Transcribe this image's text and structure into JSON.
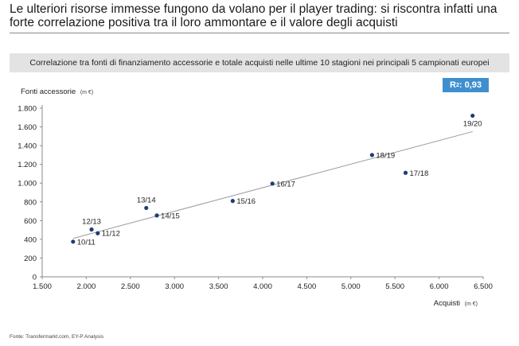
{
  "header": {
    "title": "Le ulteriori risorse immesse fungono da volano per il player trading: si riscontra infatti una forte correlazione positiva tra il loro ammontare e il valore degli acquisti",
    "subtitle": "Correlazione tra fonti di finanziamento accessorie e totale acquisti nelle ultime 10 stagioni nei principali 5 campionati europei"
  },
  "badge": {
    "label": "R",
    "sup": "2",
    "value": ": 0,93"
  },
  "footer": {
    "source": "Fonte: Transfermarkt.com, EY-P Analysis"
  },
  "colors": {
    "point": "#1f3d73",
    "trend": "#9a9a9a",
    "badge": "#3f8fcf",
    "axis": "#8a8a8a"
  },
  "chart_data": {
    "type": "scatter",
    "title": "Correlazione tra fonti di finanziamento accessorie e totale acquisti nelle ultime 10 stagioni nei principali 5 campionati europei",
    "xlabel": "Acquisti",
    "xunit": "(m €)",
    "ylabel": "Fonti accessorie",
    "yunit": "(m €)",
    "xlim": [
      1500,
      6500
    ],
    "ylim": [
      0,
      1800
    ],
    "xticks": [
      1500,
      2000,
      2500,
      3000,
      3500,
      4000,
      4500,
      5000,
      5500,
      6000,
      6500
    ],
    "xtick_labels": [
      "1.500",
      "2.000",
      "2.500",
      "3.000",
      "3.500",
      "4.000",
      "4.500",
      "5.000",
      "5.500",
      "6.000",
      "6.500"
    ],
    "yticks": [
      0,
      200,
      400,
      600,
      800,
      1000,
      1200,
      1400,
      1600,
      1800
    ],
    "ytick_labels": [
      "0",
      "200",
      "400",
      "600",
      "800",
      "1.000",
      "1.200",
      "1.400",
      "1.600",
      "1.800"
    ],
    "grid": false,
    "r_squared": 0.93,
    "trendline": {
      "x": [
        1850,
        6380
      ],
      "y": [
        410,
        1550
      ]
    },
    "points": [
      {
        "label": "10/11",
        "x": 1850,
        "y": 375,
        "label_pos": "right"
      },
      {
        "label": "11/12",
        "x": 2130,
        "y": 465,
        "label_pos": "right"
      },
      {
        "label": "12/13",
        "x": 2060,
        "y": 505,
        "label_pos": "above"
      },
      {
        "label": "13/14",
        "x": 2680,
        "y": 735,
        "label_pos": "above"
      },
      {
        "label": "14/15",
        "x": 2800,
        "y": 655,
        "label_pos": "right"
      },
      {
        "label": "15/16",
        "x": 3660,
        "y": 810,
        "label_pos": "right"
      },
      {
        "label": "16/17",
        "x": 4110,
        "y": 995,
        "label_pos": "right"
      },
      {
        "label": "18/19",
        "x": 5240,
        "y": 1300,
        "label_pos": "right"
      },
      {
        "label": "17/18",
        "x": 5620,
        "y": 1110,
        "label_pos": "right"
      },
      {
        "label": "19/20",
        "x": 6380,
        "y": 1720,
        "label_pos": "below"
      }
    ]
  }
}
